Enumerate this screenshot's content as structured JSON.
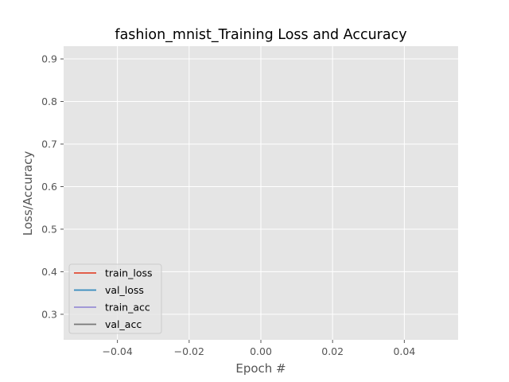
{
  "chart_data": {
    "type": "line",
    "title": "fashion_mnist_Training Loss and Accuracy",
    "xlabel": "Epoch #",
    "ylabel": "Loss/Accuracy",
    "xlim": [
      -0.055,
      0.055
    ],
    "ylim": [
      0.24,
      0.93
    ],
    "x_ticks": [
      -0.04,
      -0.02,
      0.0,
      0.02,
      0.04
    ],
    "x_tick_labels": [
      "−0.04",
      "−0.02",
      "0.00",
      "0.02",
      "0.04"
    ],
    "y_ticks": [
      0.3,
      0.4,
      0.5,
      0.6,
      0.7,
      0.8,
      0.9
    ],
    "y_tick_labels": [
      "0.3",
      "0.4",
      "0.5",
      "0.6",
      "0.7",
      "0.8",
      "0.9"
    ],
    "grid": true,
    "legend_position": "lower-left",
    "background_color": "#e5e5e5",
    "grid_color": "#ffffff",
    "series": [
      {
        "name": "train_loss",
        "color": "#e24a33",
        "x": [],
        "y": []
      },
      {
        "name": "val_loss",
        "color": "#348abd",
        "x": [],
        "y": []
      },
      {
        "name": "train_acc",
        "color": "#988ed5",
        "x": [],
        "y": []
      },
      {
        "name": "val_acc",
        "color": "#777777",
        "x": [],
        "y": []
      }
    ]
  }
}
